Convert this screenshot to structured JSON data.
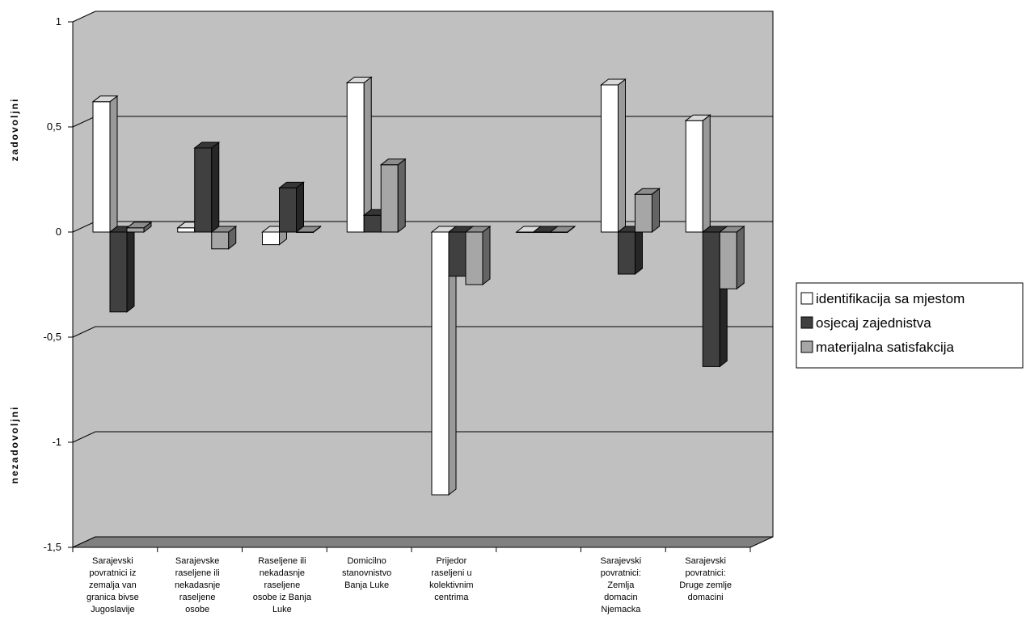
{
  "chart_data": {
    "type": "bar",
    "three_d": true,
    "categories": [
      [
        "Sarajevski",
        "povratnici iz",
        "zemalja van",
        "granica bivse",
        "Jugoslavije"
      ],
      [
        "Sarajevske",
        "raseljene ili",
        "nekadasnje",
        "raseljene",
        "osobe"
      ],
      [
        "Raseljene ili",
        "nekadasnje",
        "raseljene",
        "osobe iz Banja",
        "Luke"
      ],
      [
        "Domicilno",
        "stanovnistvo",
        "Banja Luke"
      ],
      [
        "Prijedor",
        "raseljeni u",
        "kolektivnim",
        "centrima"
      ],
      [],
      [
        "Sarajevski",
        "povratnici:",
        "Zemlja",
        "domacin",
        "Njemacka"
      ],
      [
        "Sarajevski",
        "povratnici:",
        "Druge zemlje",
        "domacini"
      ]
    ],
    "series": [
      {
        "name": "identifikacija sa mjestom",
        "color": "#ffffff",
        "values": [
          0.62,
          0.02,
          -0.06,
          0.71,
          -1.25,
          0.0,
          0.7,
          0.53
        ]
      },
      {
        "name": "osjecaj zajednistva",
        "color": "#404040",
        "values": [
          -0.38,
          0.4,
          0.21,
          0.08,
          -0.21,
          0.0,
          -0.2,
          -0.64
        ]
      },
      {
        "name": "materijalna satisfakcija",
        "color": "#a6a6a6",
        "values": [
          0.02,
          -0.08,
          0.0,
          0.32,
          -0.25,
          0.0,
          0.18,
          -0.27
        ]
      }
    ],
    "yticks": [
      "1",
      "0,5",
      "0",
      "-0,5",
      "-1",
      "-1,5"
    ],
    "ylim": [
      -1.5,
      1
    ],
    "ylabel_top": "zadovoljni",
    "ylabel_bottom": "nezadovoljni",
    "legend_position": "right",
    "plot_background": "#c0c0c0",
    "floor_color": "#808080",
    "grid": true
  }
}
